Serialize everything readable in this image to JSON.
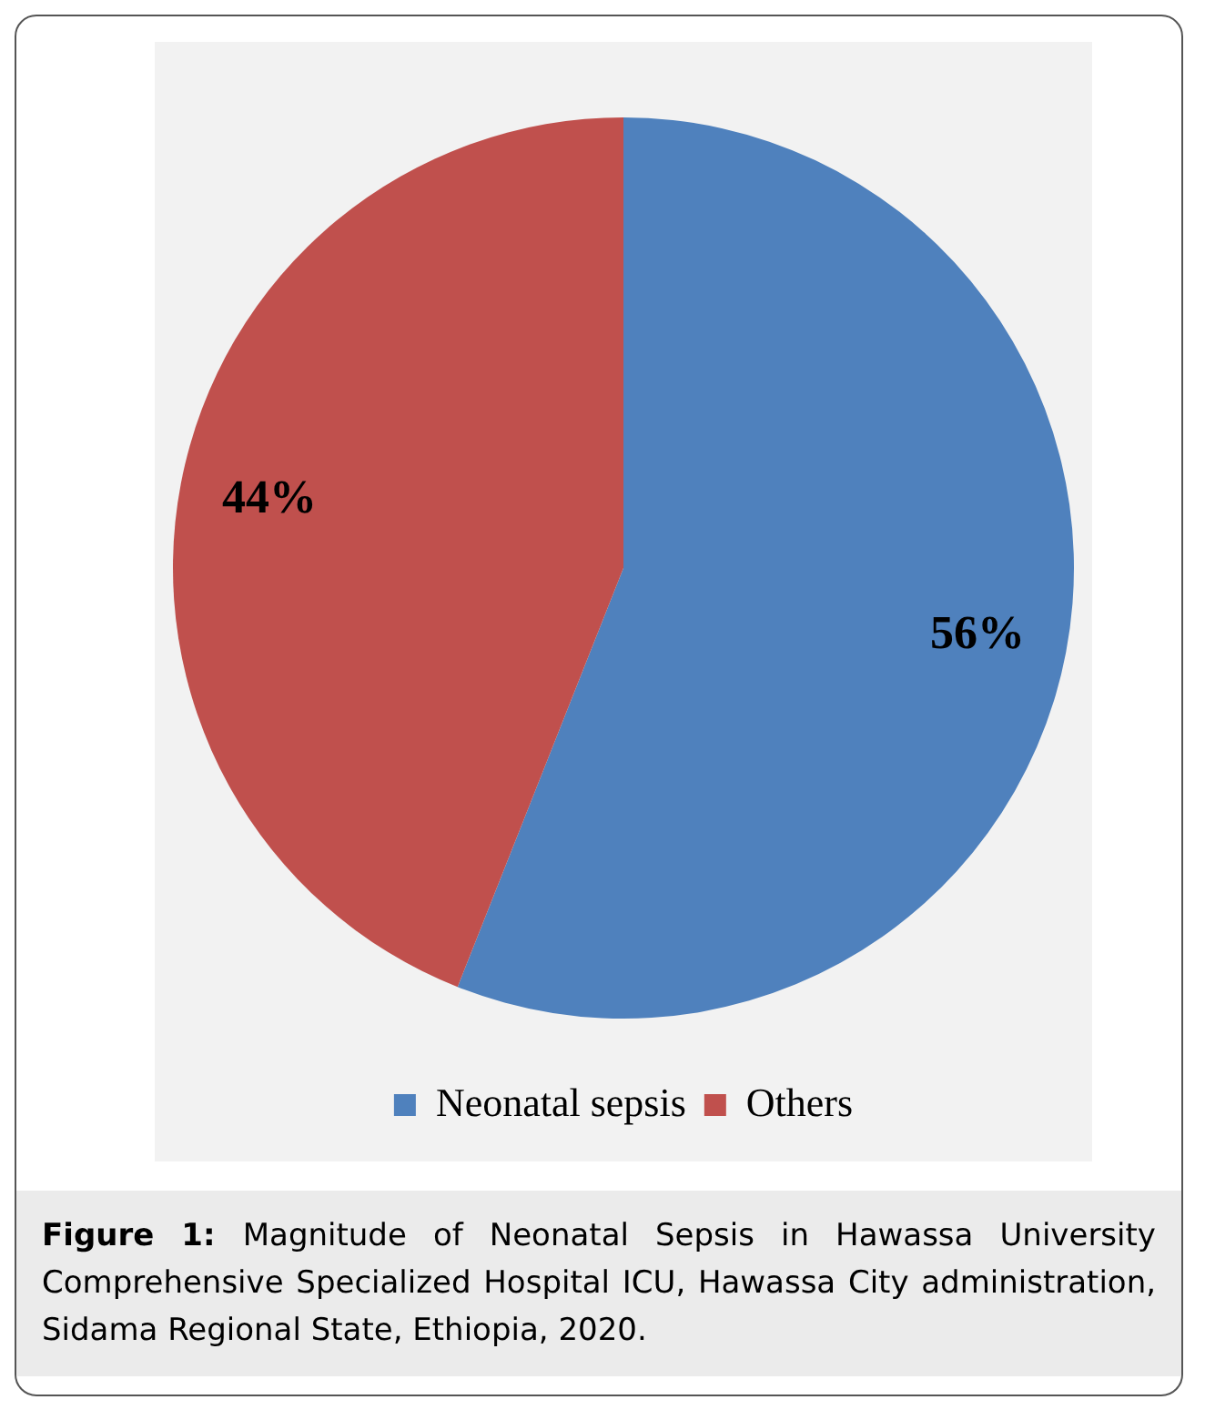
{
  "chart_data": {
    "type": "pie",
    "categories": [
      "Neonatal sepsis",
      "Others"
    ],
    "values": [
      56,
      44
    ],
    "colors": [
      "#4f81bd",
      "#c0504d"
    ],
    "value_labels": [
      "56%",
      "44%"
    ],
    "legend": "bottom",
    "annotations": [
      "Figure 1:",
      "Magnitude of Neonatal Sepsis in Hawassa University Comprehensive Specialized Hospital ICU, Hawassa City administration, Sidama Regional State, Ethiopia, 2020."
    ]
  }
}
